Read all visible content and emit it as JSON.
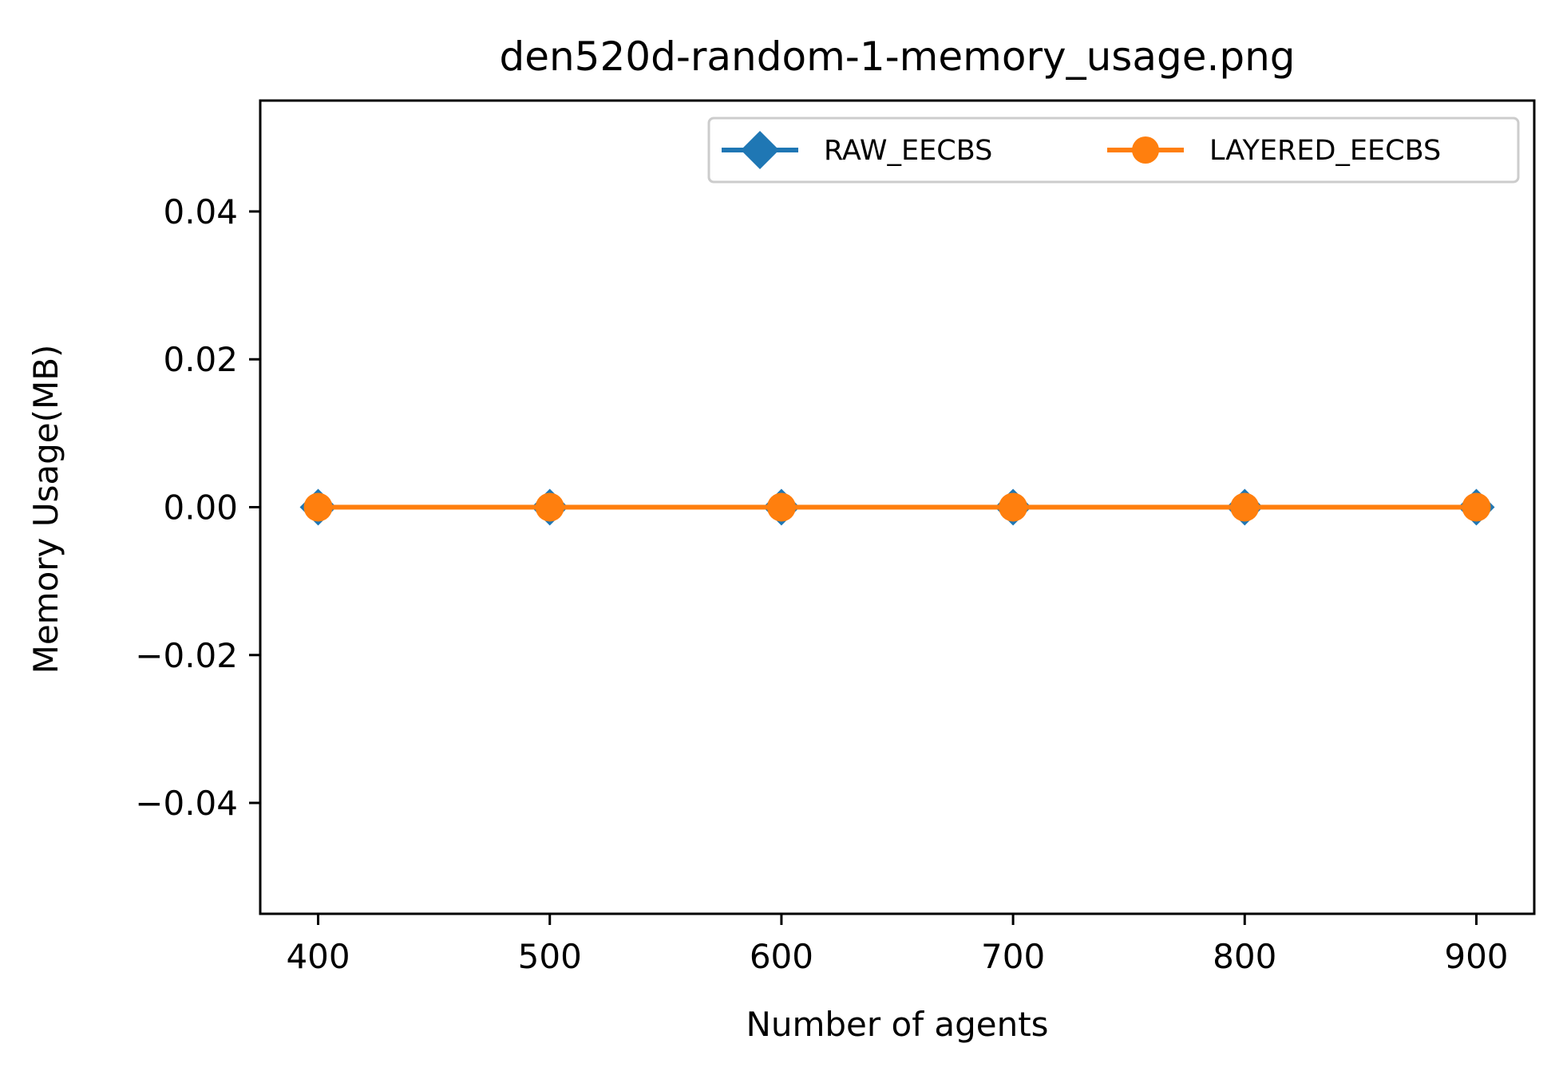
{
  "chart_data": {
    "type": "line",
    "title": "den520d-random-1-memory_usage.png",
    "xlabel": "Number of agents",
    "ylabel": "Memory Usage(MB)",
    "x": [
      400,
      500,
      600,
      700,
      800,
      900
    ],
    "xticks": [
      400,
      500,
      600,
      700,
      800,
      900
    ],
    "xtick_labels": [
      "400",
      "500",
      "600",
      "700",
      "800",
      "900"
    ],
    "yticks": [
      -0.04,
      -0.02,
      0.0,
      0.02,
      0.04
    ],
    "ytick_labels": [
      "−0.04",
      "−0.02",
      "0.00",
      "0.02",
      "0.04"
    ],
    "xlim": [
      375,
      925
    ],
    "ylim": [
      -0.055,
      0.055
    ],
    "grid": false,
    "legend_position": "top-right",
    "series": [
      {
        "name": "RAW_EECBS",
        "marker": "diamond",
        "color": "#1f77b4",
        "values": [
          0,
          0,
          0,
          0,
          0,
          0
        ]
      },
      {
        "name": "LAYERED_EECBS",
        "marker": "circle",
        "color": "#ff7f0e",
        "values": [
          0,
          0,
          0,
          0,
          0,
          0
        ]
      }
    ]
  }
}
